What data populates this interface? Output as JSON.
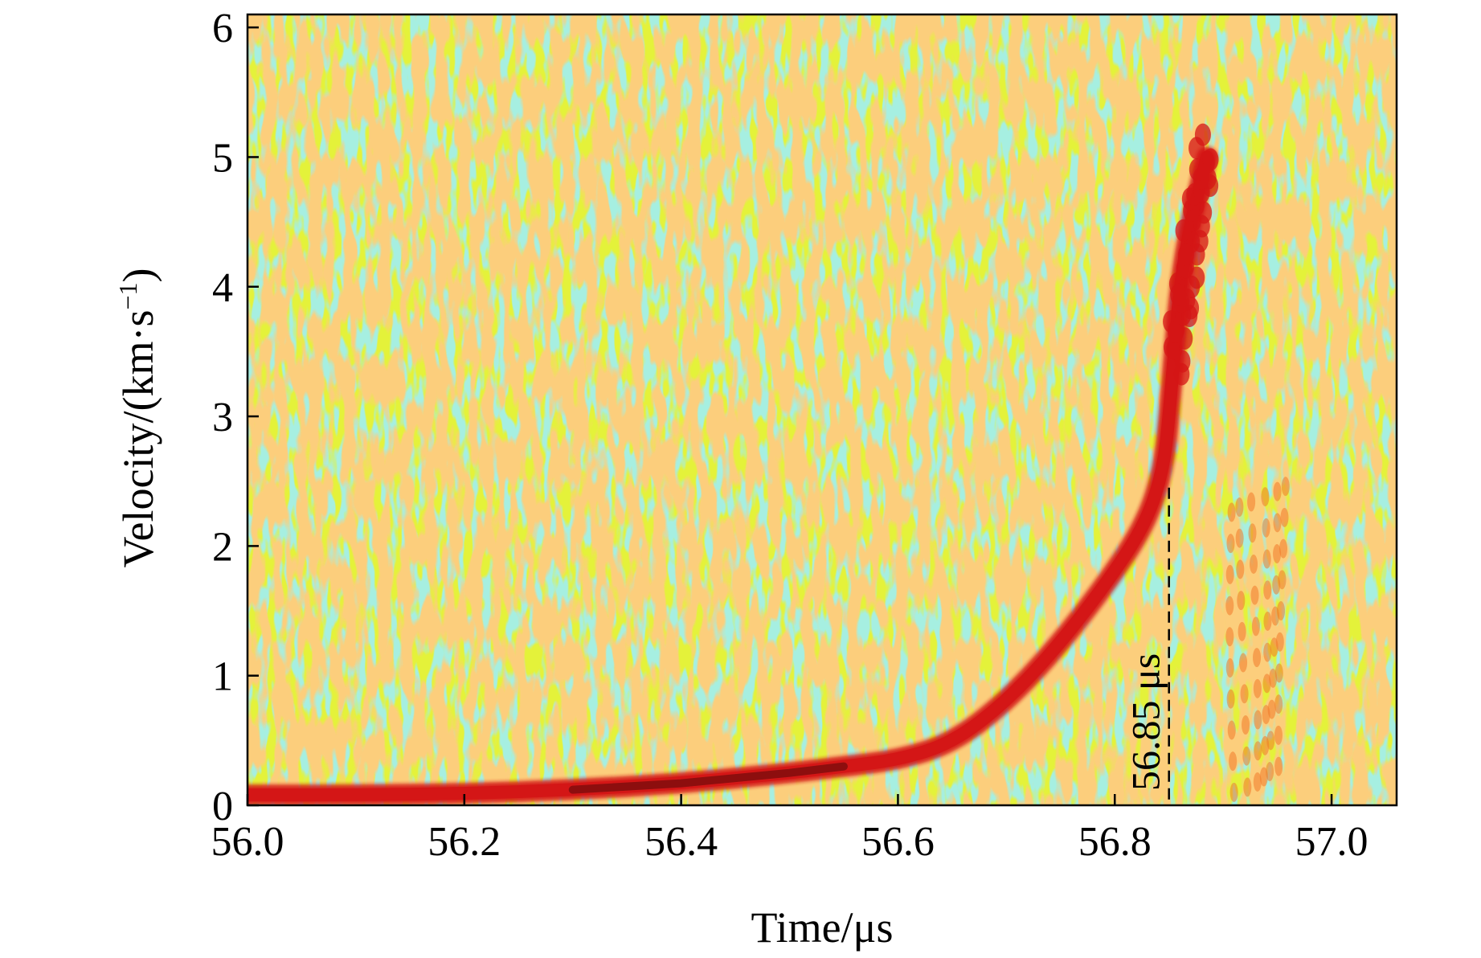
{
  "chart_data": {
    "type": "heatmap",
    "title": "",
    "xlabel": "Time/μs",
    "ylabel_main": "Velocity/(km·s",
    "ylabel_sup": "−1",
    "ylabel_close": ")",
    "xlim": [
      56.0,
      57.06
    ],
    "ylim": [
      0,
      6.1
    ],
    "xticks": [
      56.0,
      56.2,
      56.4,
      56.6,
      56.8,
      57.0
    ],
    "xtick_labels": [
      "56.0",
      "56.2",
      "56.4",
      "56.6",
      "56.8",
      "57.0"
    ],
    "yticks": [
      0,
      1,
      2,
      3,
      4,
      5,
      6
    ],
    "ytick_labels": [
      "0",
      "1",
      "2",
      "3",
      "4",
      "5",
      "6"
    ],
    "background_colors": [
      "#e4f23a",
      "#ecef3c",
      "#9fe0a6",
      "#f6a33a"
    ],
    "trace_color": "#d41616",
    "trace_core_color": "#7a0d0d",
    "trace": {
      "name": "",
      "points": [
        {
          "t": 56.0,
          "v": 0.08
        },
        {
          "t": 56.1,
          "v": 0.08
        },
        {
          "t": 56.2,
          "v": 0.09
        },
        {
          "t": 56.3,
          "v": 0.12
        },
        {
          "t": 56.4,
          "v": 0.17
        },
        {
          "t": 56.5,
          "v": 0.25
        },
        {
          "t": 56.55,
          "v": 0.3
        },
        {
          "t": 56.6,
          "v": 0.35
        },
        {
          "t": 56.65,
          "v": 0.48
        },
        {
          "t": 56.7,
          "v": 0.8
        },
        {
          "t": 56.75,
          "v": 1.25
        },
        {
          "t": 56.8,
          "v": 1.8
        },
        {
          "t": 56.83,
          "v": 2.2
        },
        {
          "t": 56.845,
          "v": 2.6
        },
        {
          "t": 56.85,
          "v": 3.0
        },
        {
          "t": 56.855,
          "v": 3.5
        },
        {
          "t": 56.86,
          "v": 4.0
        },
        {
          "t": 56.87,
          "v": 4.5
        },
        {
          "t": 56.885,
          "v": 5.0
        }
      ]
    },
    "annotation": {
      "text": "56.85 μs",
      "t": 56.85,
      "v_top": 2.45
    }
  }
}
